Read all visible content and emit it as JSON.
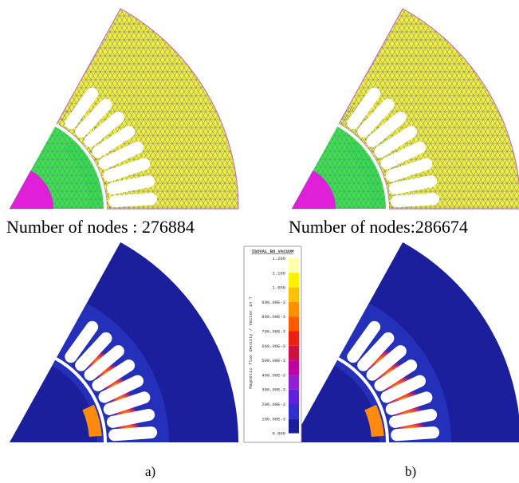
{
  "panels": [
    {
      "caption": "Number of nodes : 276884",
      "label": "a)"
    },
    {
      "caption": "Number of nodes:286674",
      "label": "b)"
    }
  ],
  "colorbar": {
    "title": "ISOVAL_BO_VACUUM",
    "axis_label": "Magnetic flux density / Vector in T",
    "labels": [
      "1.200",
      "1.100",
      "1.000",
      "900.00E-3",
      "800.00E-3",
      "700.00E-3",
      "600.00E-3",
      "500.00E-3",
      "400.00E-3",
      "300.00E-3",
      "200.00E-3",
      "100.00E-3",
      "0.000"
    ]
  }
}
